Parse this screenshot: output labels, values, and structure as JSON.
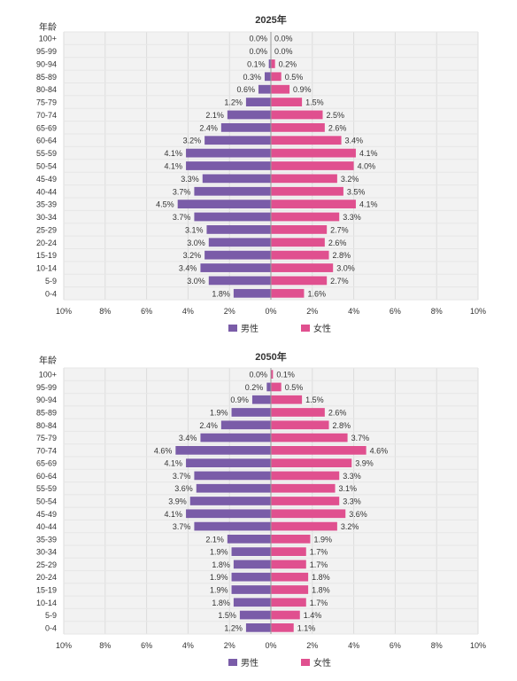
{
  "chart_data": [
    {
      "type": "bar",
      "orientation": "horizontal-population-pyramid",
      "title": "2025年",
      "ylabel": "年龄",
      "categories": [
        "100+",
        "95-99",
        "90-94",
        "85-89",
        "80-84",
        "75-79",
        "70-74",
        "65-69",
        "60-64",
        "55-59",
        "50-54",
        "45-49",
        "40-44",
        "35-39",
        "30-34",
        "25-29",
        "20-24",
        "15-19",
        "10-14",
        "5-9",
        "0-4"
      ],
      "series": [
        {
          "name": "男性",
          "values": [
            0.0,
            0.0,
            0.1,
            0.3,
            0.6,
            1.2,
            2.1,
            2.4,
            3.2,
            4.1,
            4.1,
            3.3,
            3.7,
            4.5,
            3.7,
            3.1,
            3.0,
            3.2,
            3.4,
            3.0,
            1.8
          ]
        },
        {
          "name": "女性",
          "values": [
            0.0,
            0.0,
            0.2,
            0.5,
            0.9,
            1.5,
            2.5,
            2.6,
            3.4,
            4.1,
            4.0,
            3.2,
            3.5,
            4.1,
            3.3,
            2.7,
            2.6,
            2.8,
            3.0,
            2.7,
            1.6
          ]
        }
      ],
      "xticks": [
        "10%",
        "8%",
        "6%",
        "4%",
        "2%",
        "0%",
        "2%",
        "4%",
        "6%",
        "8%",
        "10%"
      ],
      "xlim": [
        -10,
        10
      ],
      "grid": true,
      "legend": "bottom-center"
    },
    {
      "type": "bar",
      "orientation": "horizontal-population-pyramid",
      "title": "2050年",
      "ylabel": "年龄",
      "categories": [
        "100+",
        "95-99",
        "90-94",
        "85-89",
        "80-84",
        "75-79",
        "70-74",
        "65-69",
        "60-64",
        "55-59",
        "50-54",
        "45-49",
        "40-44",
        "35-39",
        "30-34",
        "25-29",
        "20-24",
        "15-19",
        "10-14",
        "5-9",
        "0-4"
      ],
      "series": [
        {
          "name": "男性",
          "values": [
            0.0,
            0.2,
            0.9,
            1.9,
            2.4,
            3.4,
            4.6,
            4.1,
            3.7,
            3.6,
            3.9,
            4.1,
            3.7,
            2.1,
            1.9,
            1.8,
            1.9,
            1.9,
            1.8,
            1.5,
            1.2
          ]
        },
        {
          "name": "女性",
          "values": [
            0.1,
            0.5,
            1.5,
            2.6,
            2.8,
            3.7,
            4.6,
            3.9,
            3.3,
            3.1,
            3.3,
            3.6,
            3.2,
            1.9,
            1.7,
            1.7,
            1.8,
            1.8,
            1.7,
            1.4,
            1.1
          ]
        }
      ],
      "xticks": [
        "10%",
        "8%",
        "6%",
        "4%",
        "2%",
        "0%",
        "2%",
        "4%",
        "6%",
        "8%",
        "10%"
      ],
      "xlim": [
        -10,
        10
      ],
      "grid": true,
      "legend": "bottom-center"
    }
  ],
  "colors": {
    "male": "#7a5ca8",
    "female": "#e0508f",
    "plot_bg": "#f2f2f2",
    "grid": "#dcdcdc"
  }
}
